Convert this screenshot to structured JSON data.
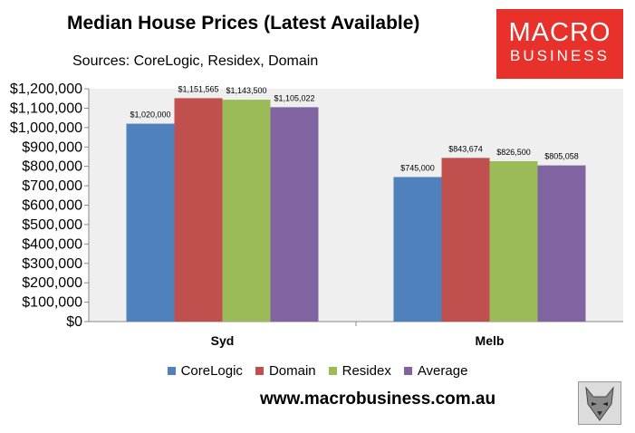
{
  "chart_data": {
    "type": "bar",
    "title": "Median House Prices (Latest Available)",
    "subtitle": "Sources: CoreLogic, Residex, Domain",
    "categories": [
      "Syd",
      "Melb"
    ],
    "series": [
      {
        "name": "CoreLogic",
        "color": "#4f81bd",
        "values": [
          1020000,
          745000
        ],
        "labels": [
          "$1,020,000",
          "$745,000"
        ]
      },
      {
        "name": "Domain",
        "color": "#c0504d",
        "values": [
          1151565,
          843674
        ],
        "labels": [
          "$1,151,565",
          "$843,674"
        ]
      },
      {
        "name": "Residex",
        "color": "#9bbb59",
        "values": [
          1143500,
          826500
        ],
        "labels": [
          "$1,143,500",
          "$826,500"
        ]
      },
      {
        "name": "Average",
        "color": "#8064a2",
        "values": [
          1105022,
          805058
        ],
        "labels": [
          "$1,105,022",
          "$805,058"
        ]
      }
    ],
    "ylim": [
      0,
      1200000
    ],
    "yticks": [
      "$0",
      "$100,000",
      "$200,000",
      "$300,000",
      "$400,000",
      "$500,000",
      "$600,000",
      "$700,000",
      "$800,000",
      "$900,000",
      "$1,000,000",
      "$1,100,000",
      "$1,200,000"
    ],
    "grid": false,
    "legend_position": "bottom",
    "plot_background": "#efefef"
  },
  "logo": {
    "line1": "MACRO",
    "line2": "BUSINESS",
    "color": "#e8312a"
  },
  "footer": {
    "url": "www.macrobusiness.com.au"
  },
  "icons": {
    "corner": "wolf-logo-icon"
  }
}
